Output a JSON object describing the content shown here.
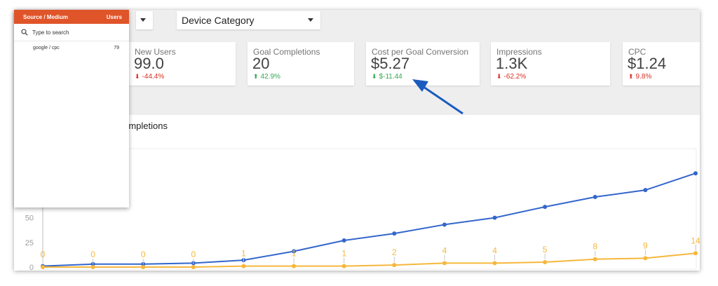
{
  "filters": {
    "device_category": "Device Category"
  },
  "metrics": [
    {
      "label": "New Users",
      "value": "99.0",
      "change": "-44.4%",
      "direction": "down"
    },
    {
      "label": "Goal Completions",
      "value": "20",
      "change": "42.9%",
      "direction": "up"
    },
    {
      "label": "Cost per Goal Conversion",
      "value": "$5.27",
      "change": "$-11.44",
      "direction": "down-good"
    },
    {
      "label": "Impressions",
      "value": "1.3K",
      "change": "-62.2%",
      "direction": "down"
    },
    {
      "label": "CPC",
      "value": "$1.24",
      "change": "9.8%",
      "direction": "up-bad"
    }
  ],
  "chart_title_partial": "al Completions",
  "dropdown": {
    "header_left": "Source / Medium",
    "header_right": "Users",
    "search_placeholder": "Type to search",
    "rows": [
      {
        "name": "google / cpc",
        "value": "79"
      }
    ]
  },
  "colors": {
    "users_line": "#3366cc",
    "goals_line": "#f6b73c",
    "header_orange": "#e0542a",
    "arrow": "#1a5bbf"
  },
  "chart_data": {
    "type": "line",
    "title": "",
    "y_ticks": [
      "0",
      "25",
      "50"
    ],
    "ylim": [
      0,
      120
    ],
    "series": [
      {
        "name": "",
        "values": [
          1,
          3,
          3,
          4,
          7,
          16,
          27,
          34,
          43,
          50,
          61,
          71,
          78,
          95
        ]
      },
      {
        "name": "",
        "values": [
          0,
          0,
          0,
          0,
          1,
          1,
          1,
          2,
          4,
          4,
          5,
          8,
          9,
          14
        ]
      }
    ],
    "point_labels": [
      "0",
      "0",
      "0",
      "0",
      "1",
      "1",
      "1",
      "2",
      "4",
      "4",
      "5",
      "8",
      "9",
      "14"
    ]
  }
}
